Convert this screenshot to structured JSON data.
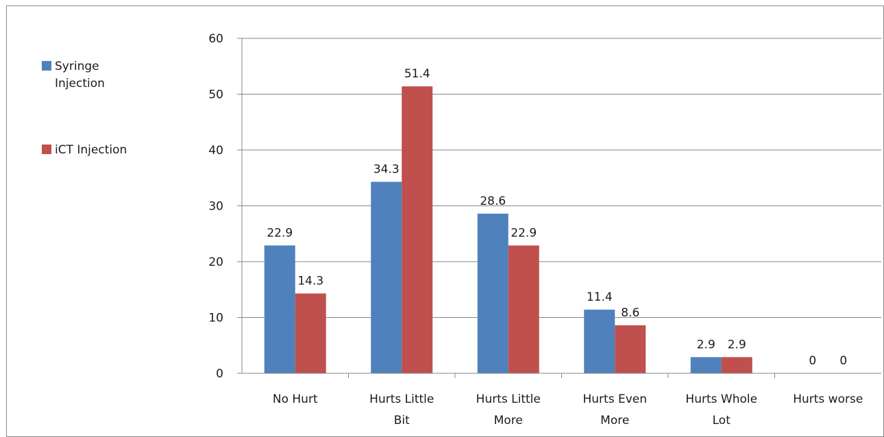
{
  "chart_data": {
    "type": "bar",
    "categories": [
      [
        "No Hurt"
      ],
      [
        "Hurts Little",
        "Bit"
      ],
      [
        "Hurts Little",
        "More"
      ],
      [
        "Hurts Even",
        "More"
      ],
      [
        "Hurts Whole",
        "Lot"
      ],
      [
        "Hurts worse"
      ]
    ],
    "series": [
      {
        "name": "Syringe Injection",
        "color": "#4f81bd",
        "values": [
          22.9,
          34.3,
          28.6,
          11.4,
          2.9,
          0
        ]
      },
      {
        "name": "iCT Injection",
        "color": "#c0504d",
        "values": [
          14.3,
          51.4,
          22.9,
          8.6,
          2.9,
          0
        ]
      }
    ],
    "data_labels": [
      [
        "22.9",
        "34.3",
        "28.6",
        "11.4",
        "2.9",
        "0"
      ],
      [
        "14.3",
        "51.4",
        "22.9",
        "8.6",
        "2.9",
        "0"
      ]
    ],
    "ylim": [
      0,
      60
    ],
    "yticks": [
      0,
      10,
      20,
      30,
      40,
      50,
      60
    ],
    "grid": true,
    "legend_position": "left"
  }
}
